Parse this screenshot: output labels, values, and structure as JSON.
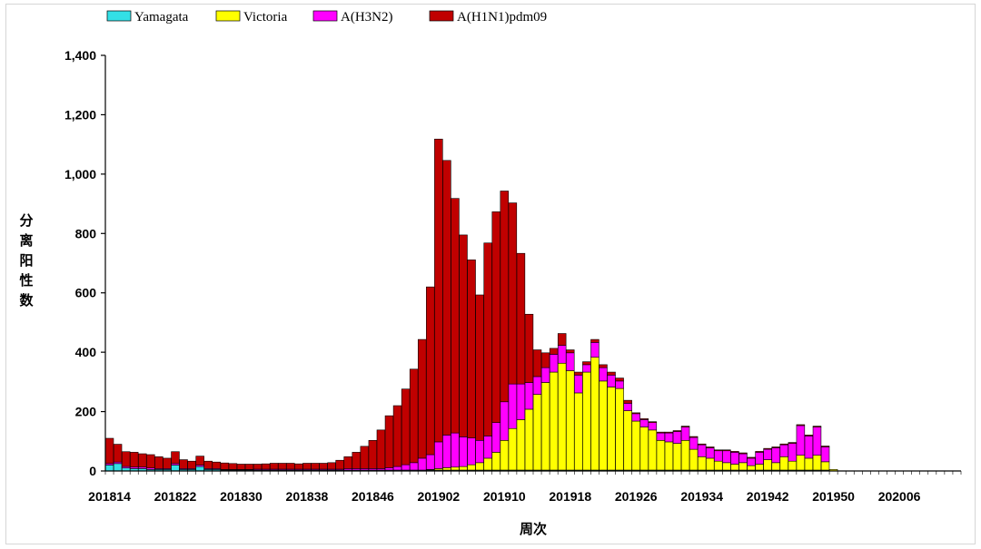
{
  "chart_data": {
    "type": "bar",
    "stacked": true,
    "xlabel": "周次",
    "ylabel": "分离阳性数",
    "ylim": [
      0,
      1400
    ],
    "y_ticks": [
      0,
      200,
      400,
      600,
      800,
      1000,
      1200,
      1400
    ],
    "y_tick_labels": [
      "0",
      "200",
      "400",
      "600",
      "800",
      "1,000",
      "1,200",
      "1,400"
    ],
    "x_tick_labels": [
      "201814",
      "201822",
      "201830",
      "201838",
      "201846",
      "201902",
      "201910",
      "201918",
      "201926",
      "201934",
      "201942",
      "201950",
      "202006"
    ],
    "legend_position": "top",
    "categories": [
      "201814",
      "201815",
      "201816",
      "201817",
      "201818",
      "201819",
      "201820",
      "201821",
      "201822",
      "201823",
      "201824",
      "201825",
      "201826",
      "201827",
      "201828",
      "201829",
      "201830",
      "201831",
      "201832",
      "201833",
      "201834",
      "201835",
      "201836",
      "201837",
      "201838",
      "201839",
      "201840",
      "201841",
      "201842",
      "201843",
      "201844",
      "201845",
      "201846",
      "201847",
      "201848",
      "201849",
      "201850",
      "201851",
      "201852",
      "201901",
      "201902",
      "201903",
      "201904",
      "201905",
      "201906",
      "201907",
      "201908",
      "201909",
      "201910",
      "201911",
      "201912",
      "201913",
      "201914",
      "201915",
      "201916",
      "201917",
      "201918",
      "201919",
      "201920",
      "201921",
      "201922",
      "201923",
      "201924",
      "201925",
      "201926",
      "201927",
      "201928",
      "201929",
      "201930",
      "201931",
      "201932",
      "201933",
      "201934",
      "201935",
      "201936",
      "201937",
      "201938",
      "201939",
      "201940",
      "201941",
      "201942",
      "201943",
      "201944",
      "201945",
      "201946",
      "201947",
      "201948",
      "201949",
      "201950",
      "201951",
      "201952",
      "202001",
      "202002",
      "202003",
      "202004",
      "202005",
      "202006",
      "202007",
      "202008",
      "202009",
      "202010",
      "202011",
      "202012",
      "202013"
    ],
    "series": [
      {
        "name": "Yamagata",
        "color": "#33e0e6",
        "values": [
          20,
          25,
          10,
          8,
          8,
          5,
          5,
          5,
          20,
          5,
          5,
          15,
          5,
          5,
          3,
          3,
          3,
          3,
          3,
          3,
          3,
          3,
          3,
          3,
          3,
          3,
          3,
          3,
          3,
          3,
          3,
          3,
          3,
          3,
          3,
          3,
          3,
          3,
          3,
          3,
          3,
          3,
          3,
          3,
          3,
          3,
          3,
          3,
          3,
          3,
          3,
          3,
          3,
          3,
          3,
          3,
          3,
          3,
          3,
          3,
          3,
          3,
          3,
          3,
          3,
          3,
          3,
          3,
          3,
          3,
          3,
          3,
          3,
          3,
          3,
          3,
          3,
          3,
          3,
          3,
          3,
          3,
          3,
          3,
          3,
          3,
          3,
          3,
          0,
          0,
          0,
          0,
          0,
          0,
          0,
          0,
          0,
          0,
          0,
          0,
          0,
          0,
          0,
          0
        ]
      },
      {
        "name": "Victoria",
        "color": "#ffff00",
        "values": [
          0,
          0,
          0,
          0,
          0,
          0,
          0,
          0,
          0,
          0,
          0,
          0,
          0,
          0,
          0,
          0,
          0,
          0,
          0,
          0,
          0,
          0,
          0,
          0,
          0,
          0,
          0,
          0,
          0,
          0,
          0,
          0,
          0,
          0,
          0,
          0,
          0,
          0,
          0,
          2,
          5,
          8,
          10,
          12,
          18,
          25,
          40,
          60,
          100,
          140,
          170,
          205,
          255,
          295,
          330,
          360,
          335,
          260,
          330,
          380,
          300,
          280,
          275,
          200,
          165,
          145,
          135,
          100,
          95,
          90,
          100,
          70,
          45,
          40,
          30,
          25,
          20,
          25,
          15,
          20,
          35,
          25,
          45,
          30,
          50,
          40,
          50,
          28,
          5,
          0,
          0,
          0,
          0,
          0,
          0,
          0,
          0,
          0,
          0,
          0,
          0,
          0,
          0,
          0
        ]
      },
      {
        "name": "A(H3N2)",
        "color": "#ff00ff",
        "values": [
          5,
          5,
          5,
          5,
          5,
          5,
          3,
          3,
          5,
          3,
          3,
          5,
          3,
          3,
          2,
          2,
          2,
          2,
          3,
          3,
          3,
          3,
          3,
          3,
          3,
          3,
          3,
          3,
          3,
          5,
          5,
          5,
          5,
          5,
          8,
          12,
          18,
          25,
          40,
          50,
          90,
          110,
          115,
          100,
          90,
          75,
          75,
          100,
          130,
          150,
          120,
          90,
          60,
          50,
          60,
          60,
          60,
          60,
          25,
          50,
          45,
          40,
          25,
          25,
          25,
          25,
          25,
          25,
          30,
          40,
          45,
          40,
          40,
          35,
          35,
          40,
          40,
          30,
          25,
          40,
          35,
          50,
          40,
          60,
          100,
          75,
          95,
          50,
          0,
          0,
          0,
          0,
          0,
          0,
          0,
          0,
          0,
          0,
          0,
          0,
          0,
          0,
          0,
          0
        ]
      },
      {
        "name": "A(H1N1)pdm09",
        "color": "#c00000",
        "values": [
          85,
          60,
          50,
          50,
          45,
          45,
          40,
          35,
          40,
          30,
          25,
          30,
          25,
          22,
          22,
          20,
          18,
          18,
          17,
          18,
          20,
          20,
          20,
          18,
          20,
          20,
          20,
          22,
          30,
          40,
          55,
          75,
          95,
          130,
          175,
          205,
          255,
          315,
          400,
          565,
          1020,
          925,
          790,
          680,
          600,
          490,
          650,
          710,
          710,
          610,
          440,
          230,
          90,
          50,
          20,
          40,
          10,
          10,
          10,
          10,
          10,
          10,
          10,
          10,
          3,
          3,
          3,
          3,
          3,
          3,
          3,
          3,
          3,
          3,
          3,
          3,
          3,
          3,
          3,
          3,
          3,
          3,
          3,
          3,
          3,
          3,
          3,
          3,
          0,
          0,
          0,
          0,
          0,
          0,
          0,
          0,
          0,
          0,
          0,
          0,
          0,
          0,
          0,
          0
        ]
      }
    ]
  }
}
